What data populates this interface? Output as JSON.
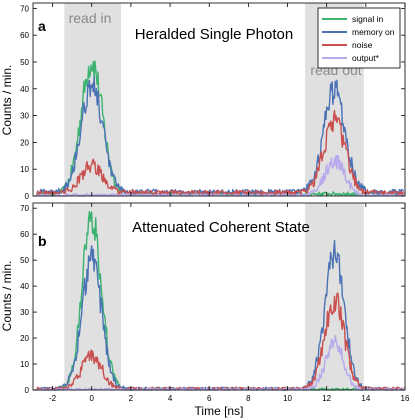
{
  "chart_data": [
    {
      "type": "line",
      "panel_label": "a",
      "title": "Heralded Single Photon",
      "xlabel": "",
      "ylabel": "Counts / min.",
      "xlim": [
        -3,
        16
      ],
      "ylim": [
        0,
        72
      ],
      "xticks": [
        "-2",
        "0",
        "2",
        "4",
        "6",
        "8",
        "10",
        "12",
        "14",
        "16"
      ],
      "yticks": [
        "0",
        "10",
        "20",
        "30",
        "40",
        "50",
        "60",
        "70"
      ],
      "xtick_values": [
        -2,
        0,
        2,
        4,
        6,
        8,
        10,
        12,
        14,
        16
      ],
      "ytick_values": [
        0,
        10,
        20,
        30,
        40,
        50,
        60,
        70
      ],
      "grid": false,
      "legend_position": "top-right",
      "shaded_regions": [
        {
          "label": "read in",
          "x": [
            -1.4,
            1.5
          ]
        },
        {
          "label": "read out",
          "x": [
            10.9,
            13.9
          ]
        }
      ],
      "series": [
        {
          "name": "signal in",
          "color": "#3cb371",
          "pulses": [
            {
              "center": 0.0,
              "width": 0.55,
              "amplitude": 49
            },
            {
              "center": 12.4,
              "width": 0.5,
              "amplitude": 0
            }
          ],
          "baseline": 0.8
        },
        {
          "name": "memory on",
          "color": "#4a72b5",
          "pulses": [
            {
              "center": 0.0,
              "width": 0.55,
              "amplitude": 40
            },
            {
              "center": 12.4,
              "width": 0.55,
              "amplitude": 38
            }
          ],
          "baseline": 1.5
        },
        {
          "name": "noise",
          "color": "#c9504f",
          "pulses": [
            {
              "center": 0.0,
              "width": 0.55,
              "amplitude": 10
            },
            {
              "center": 12.4,
              "width": 0.55,
              "amplitude": 27
            }
          ],
          "baseline": 1.2
        },
        {
          "name": "output*",
          "color": "#b8a8ec",
          "pulses": [
            {
              "center": 0.0,
              "width": 0.55,
              "amplitude": 0
            },
            {
              "center": 12.4,
              "width": 0.5,
              "amplitude": 13
            }
          ],
          "baseline": 0.3
        }
      ]
    },
    {
      "type": "line",
      "panel_label": "b",
      "title": "Attenuated Coherent State",
      "xlabel": "Time [ns]",
      "ylabel": "Counts / min.",
      "xlim": [
        -3,
        16
      ],
      "ylim": [
        0,
        72
      ],
      "xticks": [
        "-2",
        "0",
        "2",
        "4",
        "6",
        "8",
        "10",
        "12",
        "14",
        "16"
      ],
      "yticks": [
        "0",
        "10",
        "20",
        "30",
        "40",
        "50",
        "60",
        "70"
      ],
      "xtick_values": [
        -2,
        0,
        2,
        4,
        6,
        8,
        10,
        12,
        14,
        16
      ],
      "ytick_values": [
        0,
        10,
        20,
        30,
        40,
        50,
        60,
        70
      ],
      "grid": false,
      "shaded_regions": [
        {
          "label": "",
          "x": [
            -1.4,
            1.5
          ]
        },
        {
          "label": "",
          "x": [
            10.9,
            13.9
          ]
        }
      ],
      "series": [
        {
          "name": "signal in",
          "color": "#3cb371",
          "pulses": [
            {
              "center": 0.0,
              "width": 0.5,
              "amplitude": 65
            },
            {
              "center": 12.4,
              "width": 0.5,
              "amplitude": 0
            }
          ],
          "baseline": 0.3
        },
        {
          "name": "memory on",
          "color": "#4a72b5",
          "pulses": [
            {
              "center": 0.0,
              "width": 0.5,
              "amplitude": 50
            },
            {
              "center": 12.4,
              "width": 0.5,
              "amplitude": 52
            }
          ],
          "baseline": 0.5
        },
        {
          "name": "noise",
          "color": "#c9504f",
          "pulses": [
            {
              "center": 0.0,
              "width": 0.5,
              "amplitude": 13
            },
            {
              "center": 12.4,
              "width": 0.5,
              "amplitude": 34
            }
          ],
          "baseline": 0.5
        },
        {
          "name": "output*",
          "color": "#b8a8ec",
          "pulses": [
            {
              "center": 0.0,
              "width": 0.5,
              "amplitude": 0
            },
            {
              "center": 12.4,
              "width": 0.45,
              "amplitude": 19
            }
          ],
          "baseline": 0.2
        }
      ]
    }
  ]
}
